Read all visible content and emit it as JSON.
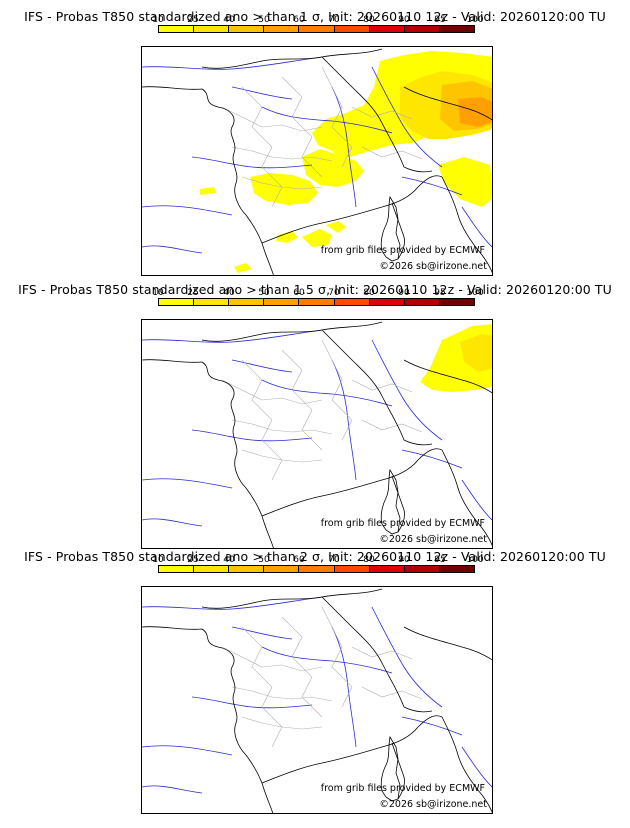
{
  "colorbar": {
    "labels": [
      "10",
      "25",
      "40",
      "50",
      "60",
      "70",
      "80",
      "90",
      "95",
      "100"
    ],
    "colors": [
      "#ffff00",
      "#ffe600",
      "#ffc400",
      "#ffa000",
      "#ff7c00",
      "#ff4a00",
      "#e00000",
      "#b00000",
      "#700000"
    ]
  },
  "panels": [
    {
      "title": "IFS - Probas T850  standardized ano > than 1 σ, Init: 20260110 12z - Valid: 20260120:00 TU",
      "credit_grib": "from grib files provided by ECMWF",
      "credit_copy": "©2026 sb@irizone.net"
    },
    {
      "title": "IFS - Probas T850  standardized ano > than 1.5 σ, Init: 20260110 12z - Valid: 20260120:00 TU",
      "credit_grib": "from grib files provided by ECMWF",
      "credit_copy": "©2026 sb@irizone.net"
    },
    {
      "title": "IFS - Probas T850  standardized ano > than 2 σ, Init: 20260110 12z - Valid: 20260120:00 TU",
      "credit_grib": "from grib files provided by ECMWF",
      "credit_copy": "©2026 sb@irizone.net"
    }
  ]
}
